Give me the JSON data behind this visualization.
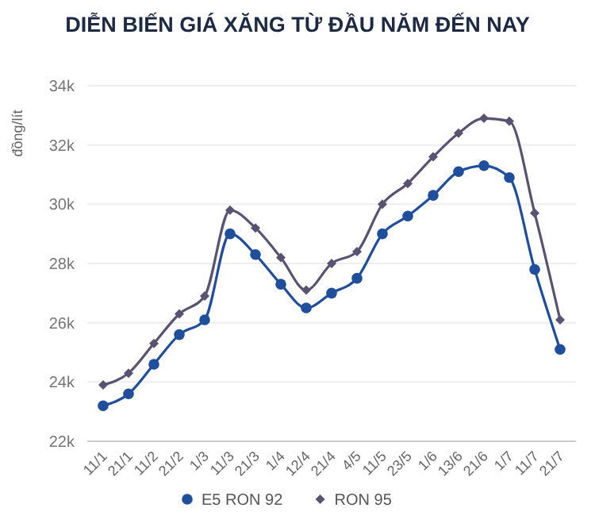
{
  "chart_data": {
    "type": "line",
    "title": "DIỄN BIẾN GIÁ XĂNG TỪ ĐẦU NĂM ĐẾN NAY",
    "ylabel": "đồng/lít",
    "categories": [
      "11/1",
      "21/1",
      "11/2",
      "21/2",
      "1/3",
      "11/3",
      "21/3",
      "1/4",
      "12/4",
      "21/4",
      "4/5",
      "11/5",
      "23/5",
      "1/6",
      "13/6",
      "21/6",
      "1/7",
      "11/7",
      "21/7"
    ],
    "series": [
      {
        "name": "E5 RON 92",
        "color": "#1f4e9c",
        "marker": "circle",
        "values": [
          23.2,
          23.6,
          24.6,
          25.6,
          26.1,
          29.0,
          28.3,
          27.3,
          26.5,
          27.0,
          27.5,
          29.0,
          29.6,
          30.3,
          31.1,
          31.3,
          30.9,
          27.8,
          25.1
        ]
      },
      {
        "name": "RON 95",
        "color": "#5a5272",
        "marker": "diamond",
        "values": [
          23.9,
          24.3,
          25.3,
          26.3,
          26.9,
          29.8,
          29.2,
          28.2,
          27.1,
          28.0,
          28.4,
          30.0,
          30.7,
          31.6,
          32.4,
          32.9,
          32.8,
          29.7,
          26.1
        ]
      }
    ],
    "ylim": [
      22,
      34
    ],
    "yticks": [
      {
        "value": 22,
        "label": "22k"
      },
      {
        "value": 24,
        "label": "24k"
      },
      {
        "value": 26,
        "label": "26k"
      },
      {
        "value": 28,
        "label": "28k"
      },
      {
        "value": 30,
        "label": "30k"
      },
      {
        "value": 32,
        "label": "32k"
      },
      {
        "value": 34,
        "label": "34k"
      }
    ],
    "grid": "y",
    "legend": "bottom",
    "line_style": "solid"
  }
}
